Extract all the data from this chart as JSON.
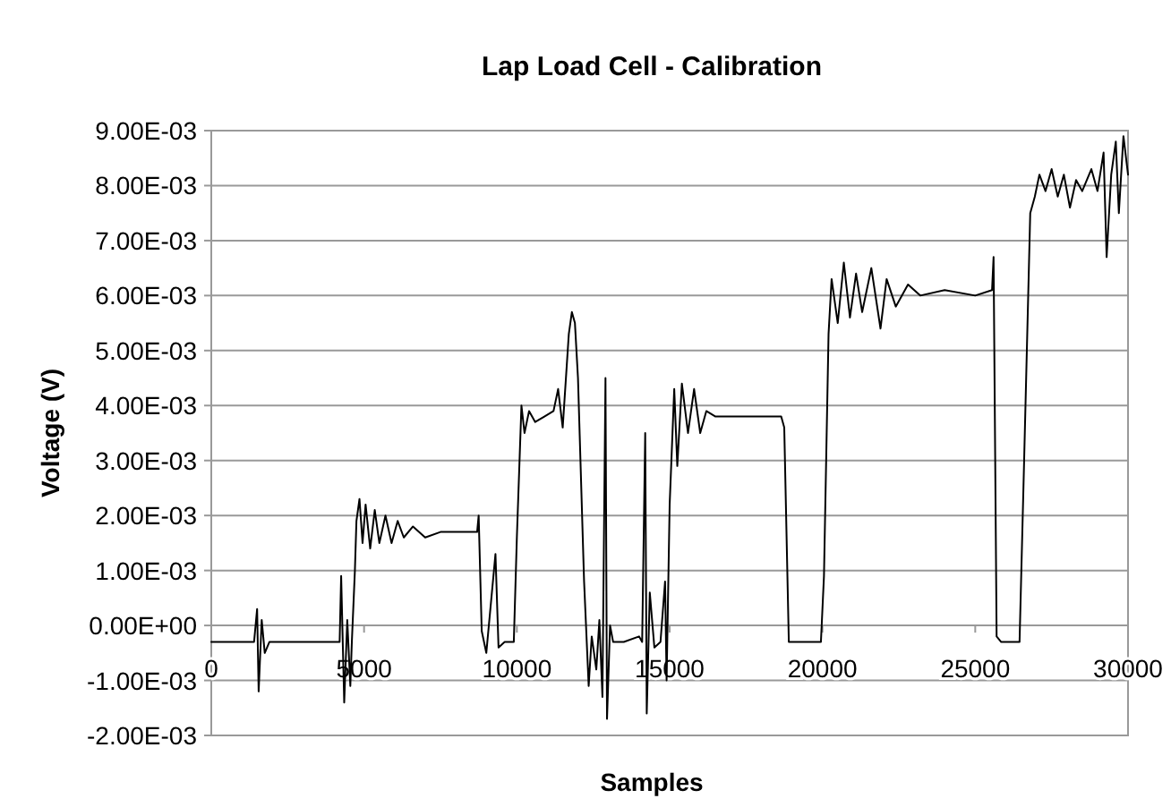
{
  "chart_data": {
    "type": "line",
    "title": "Lap Load Cell - Calibration",
    "xlabel": "Samples",
    "ylabel": "Voltage (V)",
    "xlim": [
      0,
      30000
    ],
    "xticks": [
      0,
      5000,
      10000,
      15000,
      20000,
      25000,
      30000
    ],
    "ylim": [
      -0.002,
      0.009
    ],
    "yticks": [
      {
        "value": -0.002,
        "label": "-2.00E-03"
      },
      {
        "value": -0.001,
        "label": "-1.00E-03"
      },
      {
        "value": 0,
        "label": "0.00E+00"
      },
      {
        "value": 0.001,
        "label": "1.00E-03"
      },
      {
        "value": 0.002,
        "label": "2.00E-03"
      },
      {
        "value": 0.003,
        "label": "3.00E-03"
      },
      {
        "value": 0.004,
        "label": "4.00E-03"
      },
      {
        "value": 0.005,
        "label": "5.00E-03"
      },
      {
        "value": 0.006,
        "label": "6.00E-03"
      },
      {
        "value": 0.007,
        "label": "7.00E-03"
      },
      {
        "value": 0.008,
        "label": "8.00E-03"
      },
      {
        "value": 0.009,
        "label": "9.00E-03"
      }
    ],
    "grid": "y",
    "marker": "none",
    "line_style": "solid",
    "series": [
      {
        "color": "#000000",
        "x": [
          0,
          1400,
          1500,
          1550,
          1650,
          1750,
          1900,
          4000,
          4200,
          4250,
          4350,
          4450,
          4550,
          4600,
          4700,
          4750,
          4850,
          4950,
          5050,
          5200,
          5350,
          5500,
          5700,
          5900,
          6100,
          6300,
          6600,
          7000,
          7500,
          8000,
          8700,
          8750,
          8850,
          9000,
          9300,
          9400,
          9600,
          9900,
          10000,
          10150,
          10250,
          10400,
          10600,
          10900,
          11200,
          11350,
          11500,
          11700,
          11800,
          11900,
          12000,
          12200,
          12350,
          12450,
          12600,
          12700,
          12800,
          12900,
          12950,
          13050,
          13150,
          13500,
          14000,
          14100,
          14200,
          14250,
          14350,
          14500,
          14700,
          14850,
          14900,
          15000,
          15150,
          15250,
          15400,
          15600,
          15800,
          16000,
          16200,
          16500,
          17000,
          18000,
          18650,
          18750,
          18900,
          19300,
          19950,
          20050,
          20200,
          20300,
          20500,
          20700,
          20900,
          21100,
          21300,
          21600,
          21900,
          22100,
          22400,
          22800,
          23200,
          24000,
          25000,
          25550,
          25600,
          25700,
          25850,
          26450,
          26600,
          26800,
          26950,
          27100,
          27300,
          27500,
          27700,
          27900,
          28100,
          28300,
          28500,
          28800,
          29000,
          29200,
          29300,
          29450,
          29600,
          29700,
          29850,
          30000
        ],
        "values": [
          -0.0003,
          -0.0003,
          0.0003,
          -0.0012,
          0.0001,
          -0.0005,
          -0.0003,
          -0.0003,
          -0.0003,
          0.0009,
          -0.0014,
          0.0001,
          -0.0011,
          -0.0003,
          0.001,
          0.0019,
          0.0023,
          0.0015,
          0.0022,
          0.0014,
          0.0021,
          0.0015,
          0.002,
          0.0015,
          0.0019,
          0.0016,
          0.0018,
          0.0016,
          0.0017,
          0.0017,
          0.0017,
          0.002,
          -0.0001,
          -0.0005,
          0.0013,
          -0.0004,
          -0.0003,
          -0.0003,
          0.0016,
          0.004,
          0.0035,
          0.0039,
          0.0037,
          0.0038,
          0.0039,
          0.0043,
          0.0036,
          0.0053,
          0.0057,
          0.0055,
          0.0045,
          0.0008,
          -0.0011,
          -0.0002,
          -0.0008,
          0.0001,
          -0.0013,
          0.0045,
          -0.0017,
          0,
          -0.0003,
          -0.0003,
          -0.0002,
          -0.0003,
          0.0035,
          -0.0016,
          0.0006,
          -0.0004,
          -0.0003,
          0.0008,
          -0.001,
          0.0022,
          0.0043,
          0.0029,
          0.0044,
          0.0035,
          0.0043,
          0.0035,
          0.0039,
          0.0038,
          0.0038,
          0.0038,
          0.0038,
          0.0036,
          -0.0003,
          -0.0003,
          -0.0003,
          0.0009,
          0.0053,
          0.0063,
          0.0055,
          0.0066,
          0.0056,
          0.0064,
          0.0057,
          0.0065,
          0.0054,
          0.0063,
          0.0058,
          0.0062,
          0.006,
          0.0061,
          0.006,
          0.0061,
          0.0067,
          -0.0002,
          -0.0003,
          -0.0003,
          0.003,
          0.0075,
          0.0078,
          0.0082,
          0.0079,
          0.0083,
          0.0078,
          0.0082,
          0.0076,
          0.0081,
          0.0079,
          0.0083,
          0.0079,
          0.0086,
          0.0067,
          0.0082,
          0.0088,
          0.0075,
          0.0089,
          0.0082
        ]
      }
    ]
  }
}
